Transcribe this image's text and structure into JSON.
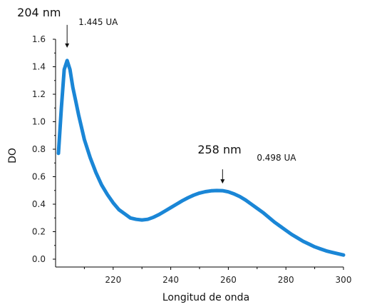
{
  "chart_data": {
    "type": "line",
    "xlabel": "Longitud de onda",
    "ylabel": "DO",
    "xlim": [
      200,
      300
    ],
    "ylim": [
      0,
      1.6
    ],
    "xticks": [
      220,
      240,
      260,
      280,
      300
    ],
    "yticks": [
      0.0,
      0.2,
      0.4,
      0.6,
      0.8,
      1.0,
      1.2,
      1.4,
      1.6
    ],
    "ytick_labels": [
      "0.0",
      "0.2",
      "0.4",
      "0.6",
      "0.8",
      "1.0",
      "1.2",
      "1.4",
      "1.6"
    ],
    "grid": false,
    "line_color": "#1a86d6",
    "series": [
      {
        "x": [
          201,
          202,
          203,
          204,
          205,
          206,
          207,
          208,
          210,
          212,
          214,
          216,
          218,
          220,
          222,
          224,
          226,
          228,
          230,
          232,
          234,
          236,
          238,
          240,
          242,
          244,
          246,
          248,
          250,
          252,
          254,
          256,
          258,
          260,
          262,
          264,
          266,
          268,
          270,
          272,
          274,
          276,
          278,
          280,
          282,
          284,
          286,
          288,
          290,
          292,
          294,
          296,
          298,
          300
        ],
        "y": [
          0.77,
          1.1,
          1.38,
          1.445,
          1.38,
          1.25,
          1.15,
          1.05,
          0.87,
          0.74,
          0.63,
          0.54,
          0.47,
          0.41,
          0.36,
          0.33,
          0.3,
          0.29,
          0.285,
          0.29,
          0.305,
          0.325,
          0.35,
          0.375,
          0.4,
          0.425,
          0.447,
          0.466,
          0.481,
          0.491,
          0.497,
          0.499,
          0.498,
          0.49,
          0.475,
          0.455,
          0.43,
          0.4,
          0.37,
          0.34,
          0.305,
          0.27,
          0.24,
          0.21,
          0.18,
          0.155,
          0.13,
          0.11,
          0.09,
          0.075,
          0.06,
          0.05,
          0.04,
          0.03
        ]
      }
    ],
    "annotations": [
      {
        "wavelength": "204 nm",
        "value": "1.445 UA",
        "x": 204,
        "y": 1.445
      },
      {
        "wavelength": "258 nm",
        "value": "0.498 UA",
        "x": 258,
        "y": 0.498
      }
    ]
  }
}
